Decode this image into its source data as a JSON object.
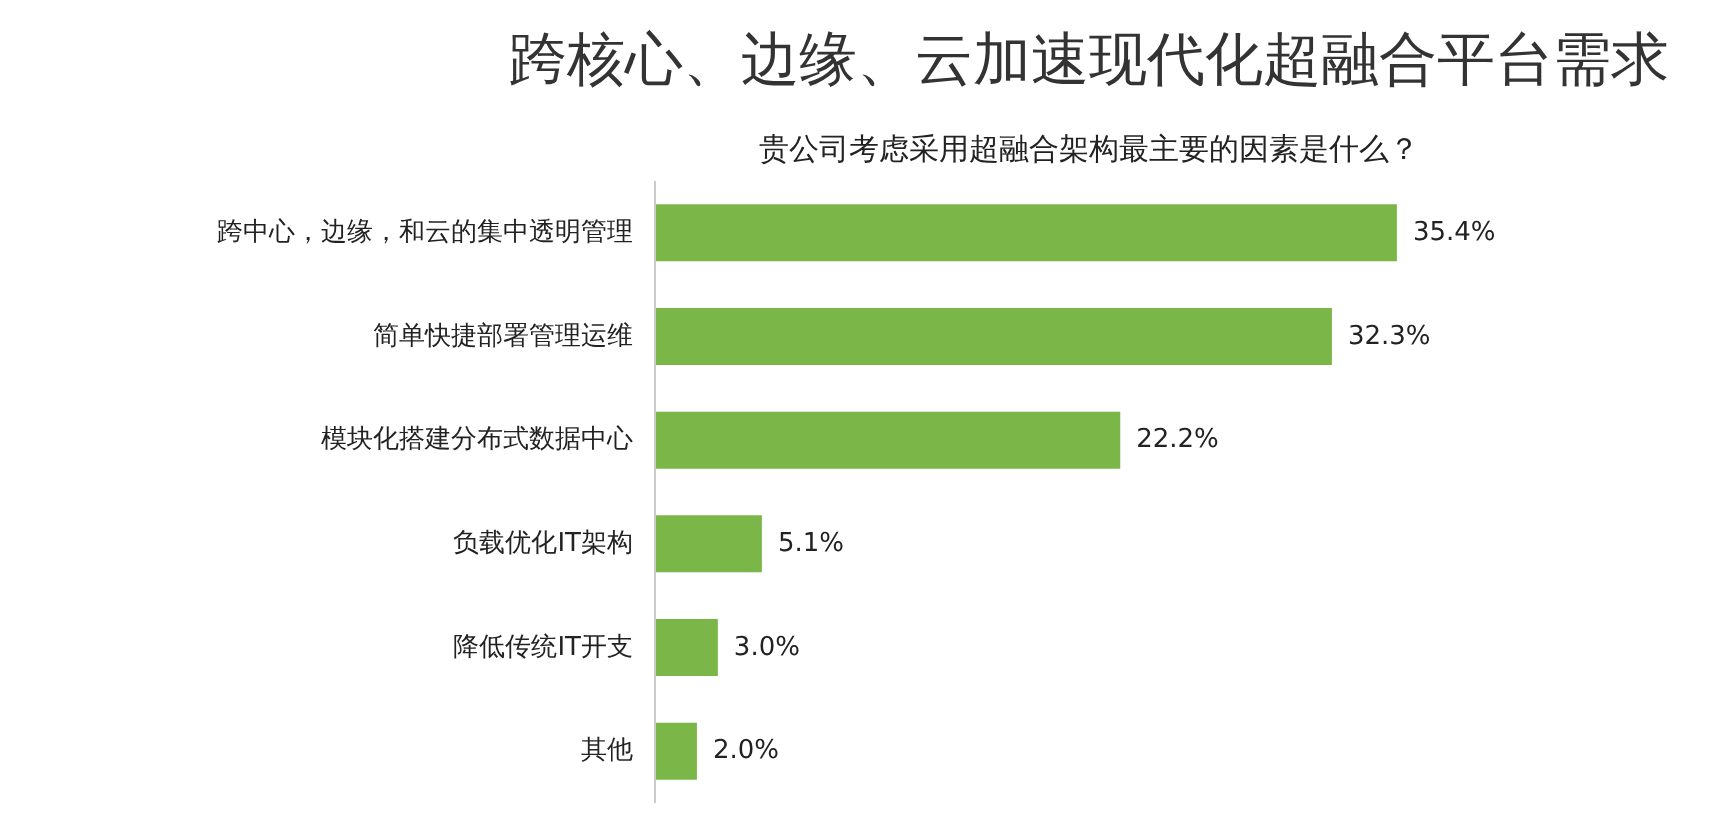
{
  "chart_data": {
    "type": "bar",
    "orientation": "horizontal",
    "title": "跨核心、边缘、云加速现代化超融合平台需求",
    "subtitle": "贵公司考虑采用超融合架构最主要的因素是什么？",
    "categories": [
      "跨中心，边缘，和云的集中透明管理",
      "简单快捷部署管理运维",
      "模块化搭建分布式数据中心",
      "负载优化IT架构",
      "降低传统IT开支",
      "其他"
    ],
    "values": [
      35.4,
      32.3,
      22.2,
      5.1,
      3.0,
      2.0
    ],
    "value_labels": [
      "35.4%",
      "32.3%",
      "22.2%",
      "5.1%",
      "3.0%",
      "2.0%"
    ],
    "color": "#7ab648",
    "grid": false
  }
}
